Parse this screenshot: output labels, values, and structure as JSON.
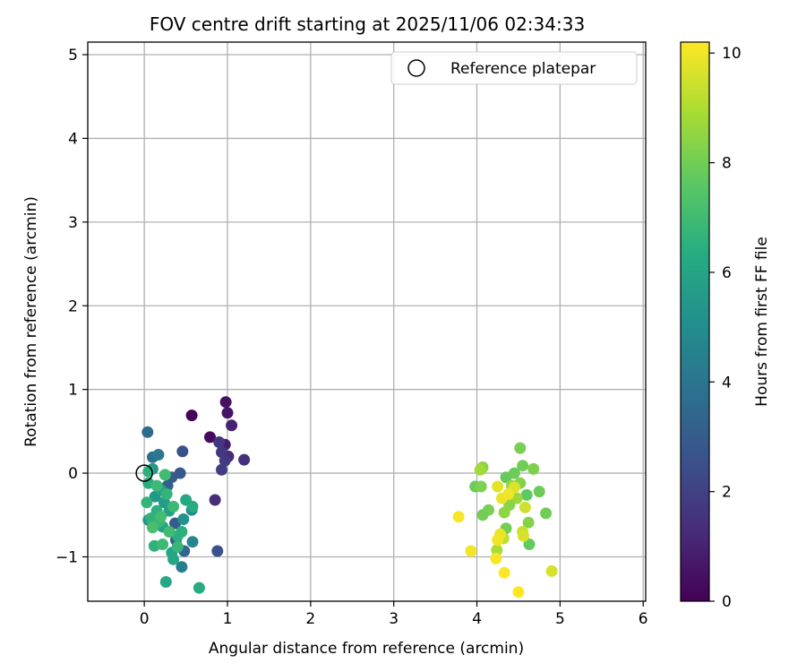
{
  "chart_data": {
    "type": "scatter",
    "title": "FOV centre drift starting at 2025/11/06 02:34:33",
    "xlabel": "Angular distance from reference (arcmin)",
    "ylabel": "Rotation from reference (arcmin)",
    "xlim": [
      -0.68,
      6.03
    ],
    "ylim": [
      -1.53,
      5.15
    ],
    "xticks": [
      "0",
      "1",
      "2",
      "3",
      "4",
      "5",
      "6"
    ],
    "yticks": [
      "−1",
      "0",
      "1",
      "2",
      "3",
      "4",
      "5"
    ],
    "grid": true,
    "legend": {
      "position": "top-right",
      "label": "Reference platepar"
    },
    "colorbar": {
      "label": "Hours from first FF file",
      "min": 0,
      "max": 10.2,
      "ticks": [
        "0",
        "2",
        "4",
        "6",
        "8",
        "10"
      ],
      "colormap": "viridis"
    },
    "reference": {
      "x": 0,
      "y": 0
    },
    "points": [
      {
        "x": 0.57,
        "y": 0.69,
        "t": 0.1
      },
      {
        "x": 0.79,
        "y": 0.43,
        "t": 0.3
      },
      {
        "x": 0.98,
        "y": 0.85,
        "t": 0.5
      },
      {
        "x": 1.0,
        "y": 0.72,
        "t": 0.6
      },
      {
        "x": 1.05,
        "y": 0.57,
        "t": 1.0
      },
      {
        "x": 0.97,
        "y": 0.34,
        "t": 0.8
      },
      {
        "x": 1.01,
        "y": 0.2,
        "t": 1.2
      },
      {
        "x": 1.2,
        "y": 0.16,
        "t": 1.4
      },
      {
        "x": 0.85,
        "y": -0.32,
        "t": 1.3
      },
      {
        "x": 0.9,
        "y": 0.37,
        "t": 1.6
      },
      {
        "x": 0.93,
        "y": 0.25,
        "t": 1.7
      },
      {
        "x": 0.97,
        "y": 0.15,
        "t": 1.8
      },
      {
        "x": 0.93,
        "y": 0.04,
        "t": 1.9
      },
      {
        "x": 0.88,
        "y": -0.93,
        "t": 2.6
      },
      {
        "x": 0.46,
        "y": 0.26,
        "t": 2.6
      },
      {
        "x": 0.43,
        "y": 0.0,
        "t": 2.8
      },
      {
        "x": 0.33,
        "y": -0.05,
        "t": 3.0
      },
      {
        "x": 0.28,
        "y": -0.15,
        "t": 3.2
      },
      {
        "x": 0.37,
        "y": -0.6,
        "t": 2.9
      },
      {
        "x": 0.38,
        "y": -0.8,
        "t": 3.1
      },
      {
        "x": 0.48,
        "y": -0.93,
        "t": 3.3
      },
      {
        "x": 0.04,
        "y": 0.49,
        "t": 3.6
      },
      {
        "x": 0.1,
        "y": 0.19,
        "t": 3.8
      },
      {
        "x": 0.17,
        "y": 0.22,
        "t": 4.2
      },
      {
        "x": 0.45,
        "y": -1.12,
        "t": 4.4
      },
      {
        "x": 0.58,
        "y": -0.82,
        "t": 4.6
      },
      {
        "x": 0.57,
        "y": -0.44,
        "t": 5.0
      },
      {
        "x": 0.47,
        "y": -0.55,
        "t": 5.2
      },
      {
        "x": 0.05,
        "y": -0.56,
        "t": 5.3
      },
      {
        "x": 0.13,
        "y": -0.28,
        "t": 5.4
      },
      {
        "x": 0.24,
        "y": -0.35,
        "t": 5.6
      },
      {
        "x": 0.1,
        "y": 0.05,
        "t": 5.5
      },
      {
        "x": 0.2,
        "y": -0.2,
        "t": 5.7
      },
      {
        "x": 0.3,
        "y": -0.45,
        "t": 5.8
      },
      {
        "x": 0.22,
        "y": -0.64,
        "t": 5.9
      },
      {
        "x": 0.33,
        "y": -0.95,
        "t": 6.0
      },
      {
        "x": 0.26,
        "y": -1.3,
        "t": 6.2
      },
      {
        "x": 0.66,
        "y": -1.37,
        "t": 6.3
      },
      {
        "x": 0.35,
        "y": -1.03,
        "t": 6.1
      },
      {
        "x": 0.4,
        "y": -0.75,
        "t": 6.4
      },
      {
        "x": 0.45,
        "y": -0.7,
        "t": 6.5
      },
      {
        "x": 0.5,
        "y": -0.32,
        "t": 6.2
      },
      {
        "x": 0.58,
        "y": -0.4,
        "t": 6.3
      },
      {
        "x": 0.12,
        "y": -0.87,
        "t": 6.6
      },
      {
        "x": 0.05,
        "y": -0.12,
        "t": 6.4
      },
      {
        "x": 0.15,
        "y": -0.45,
        "t": 6.5
      },
      {
        "x": 0.03,
        "y": -0.35,
        "t": 6.7
      },
      {
        "x": 0.08,
        "y": -0.54,
        "t": 6.6
      },
      {
        "x": 0.18,
        "y": -0.58,
        "t": 6.8
      },
      {
        "x": 0.27,
        "y": -0.25,
        "t": 6.7
      },
      {
        "x": 0.35,
        "y": -0.4,
        "t": 6.9
      },
      {
        "x": 0.25,
        "y": -0.02,
        "t": 7.0
      },
      {
        "x": 0.05,
        "y": 0.02,
        "t": 6.5
      },
      {
        "x": 0.15,
        "y": -0.15,
        "t": 6.9
      },
      {
        "x": 0.2,
        "y": -0.52,
        "t": 7.1
      },
      {
        "x": 0.3,
        "y": -0.7,
        "t": 7.0
      },
      {
        "x": 0.4,
        "y": -0.88,
        "t": 6.8
      },
      {
        "x": 0.1,
        "y": -0.65,
        "t": 7.2
      },
      {
        "x": 0.22,
        "y": -0.85,
        "t": 6.9
      },
      {
        "x": 4.35,
        "y": -0.05,
        "t": 7.8
      },
      {
        "x": 4.45,
        "y": 0.0,
        "t": 7.9
      },
      {
        "x": 4.52,
        "y": 0.3,
        "t": 8.1
      },
      {
        "x": 4.55,
        "y": 0.09,
        "t": 8.0
      },
      {
        "x": 4.68,
        "y": 0.05,
        "t": 8.2
      },
      {
        "x": 4.6,
        "y": -0.26,
        "t": 7.7
      },
      {
        "x": 4.75,
        "y": -0.22,
        "t": 7.9
      },
      {
        "x": 4.83,
        "y": -0.48,
        "t": 8.0
      },
      {
        "x": 4.62,
        "y": -0.59,
        "t": 8.3
      },
      {
        "x": 4.63,
        "y": -0.85,
        "t": 7.8
      },
      {
        "x": 4.35,
        "y": -0.66,
        "t": 8.0
      },
      {
        "x": 4.07,
        "y": 0.07,
        "t": 8.4
      },
      {
        "x": 4.04,
        "y": 0.04,
        "t": 8.8
      },
      {
        "x": 3.98,
        "y": -0.16,
        "t": 7.9
      },
      {
        "x": 4.05,
        "y": -0.16,
        "t": 8.2
      },
      {
        "x": 4.14,
        "y": -0.44,
        "t": 8.1
      },
      {
        "x": 4.07,
        "y": -0.5,
        "t": 8.0
      },
      {
        "x": 4.33,
        "y": -0.47,
        "t": 8.5
      },
      {
        "x": 4.42,
        "y": -0.15,
        "t": 8.6
      },
      {
        "x": 4.48,
        "y": -0.3,
        "t": 8.7
      },
      {
        "x": 4.39,
        "y": -0.38,
        "t": 8.4
      },
      {
        "x": 4.52,
        "y": -0.12,
        "t": 8.3
      },
      {
        "x": 4.24,
        "y": -0.92,
        "t": 8.9
      },
      {
        "x": 4.32,
        "y": -0.78,
        "t": 9.2
      },
      {
        "x": 4.55,
        "y": -0.7,
        "t": 9.4
      },
      {
        "x": 4.56,
        "y": -0.75,
        "t": 9.6
      },
      {
        "x": 4.58,
        "y": -0.41,
        "t": 9.5
      },
      {
        "x": 4.45,
        "y": -0.17,
        "t": 9.7
      },
      {
        "x": 4.25,
        "y": -0.16,
        "t": 9.8
      },
      {
        "x": 4.3,
        "y": -0.3,
        "t": 9.9
      },
      {
        "x": 4.38,
        "y": -0.25,
        "t": 10.0
      },
      {
        "x": 4.28,
        "y": -0.73,
        "t": 9.9
      },
      {
        "x": 4.25,
        "y": -0.8,
        "t": 10.0
      },
      {
        "x": 3.78,
        "y": -0.52,
        "t": 10.1
      },
      {
        "x": 3.93,
        "y": -0.93,
        "t": 10.0
      },
      {
        "x": 4.23,
        "y": -1.02,
        "t": 10.1
      },
      {
        "x": 4.33,
        "y": -1.19,
        "t": 10.2
      },
      {
        "x": 4.5,
        "y": -1.42,
        "t": 10.2
      },
      {
        "x": 4.9,
        "y": -1.17,
        "t": 9.6
      }
    ]
  }
}
